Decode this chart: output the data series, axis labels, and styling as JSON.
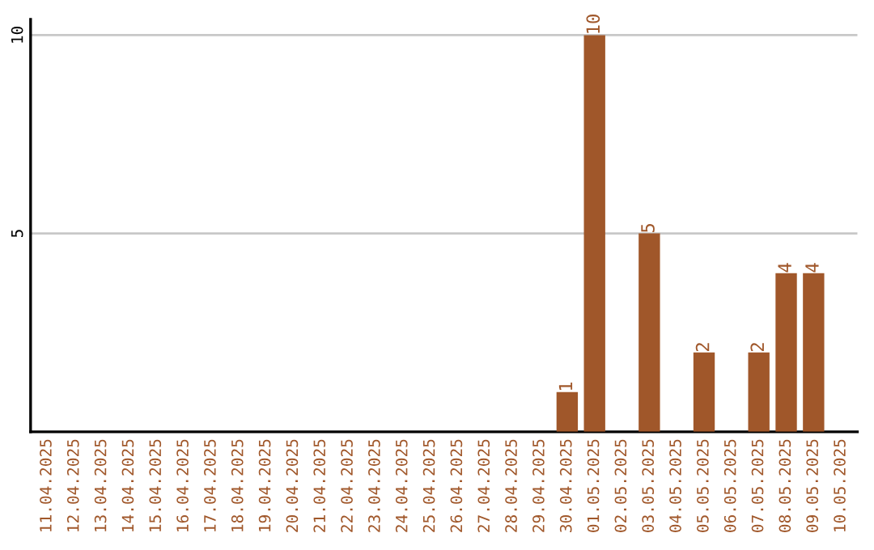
{
  "chart_data": {
    "type": "bar",
    "categories": [
      "11.04.2025",
      "12.04.2025",
      "13.04.2025",
      "14.04.2025",
      "15.04.2025",
      "16.04.2025",
      "17.04.2025",
      "18.04.2025",
      "19.04.2025",
      "20.04.2025",
      "21.04.2025",
      "22.04.2025",
      "23.04.2025",
      "24.04.2025",
      "25.04.2025",
      "26.04.2025",
      "27.04.2025",
      "28.04.2025",
      "29.04.2025",
      "30.04.2025",
      "01.05.2025",
      "02.05.2025",
      "03.05.2025",
      "04.05.2025",
      "05.05.2025",
      "06.05.2025",
      "07.05.2025",
      "08.05.2025",
      "09.05.2025",
      "10.05.2025"
    ],
    "values": [
      0,
      0,
      0,
      0,
      0,
      0,
      0,
      0,
      0,
      0,
      0,
      0,
      0,
      0,
      0,
      0,
      0,
      0,
      0,
      1,
      10,
      0,
      5,
      0,
      2,
      0,
      2,
      4,
      4,
      0
    ],
    "value_labels": [
      null,
      null,
      null,
      null,
      null,
      null,
      null,
      null,
      null,
      null,
      null,
      null,
      null,
      null,
      null,
      null,
      null,
      null,
      null,
      "1",
      "10",
      null,
      "5",
      null,
      "2",
      null,
      "2",
      "4",
      "4",
      null
    ],
    "color": "#a0572a",
    "ylim": [
      0,
      10.4
    ],
    "yticks": [
      5,
      10
    ],
    "grid": "y",
    "legend": false
  }
}
